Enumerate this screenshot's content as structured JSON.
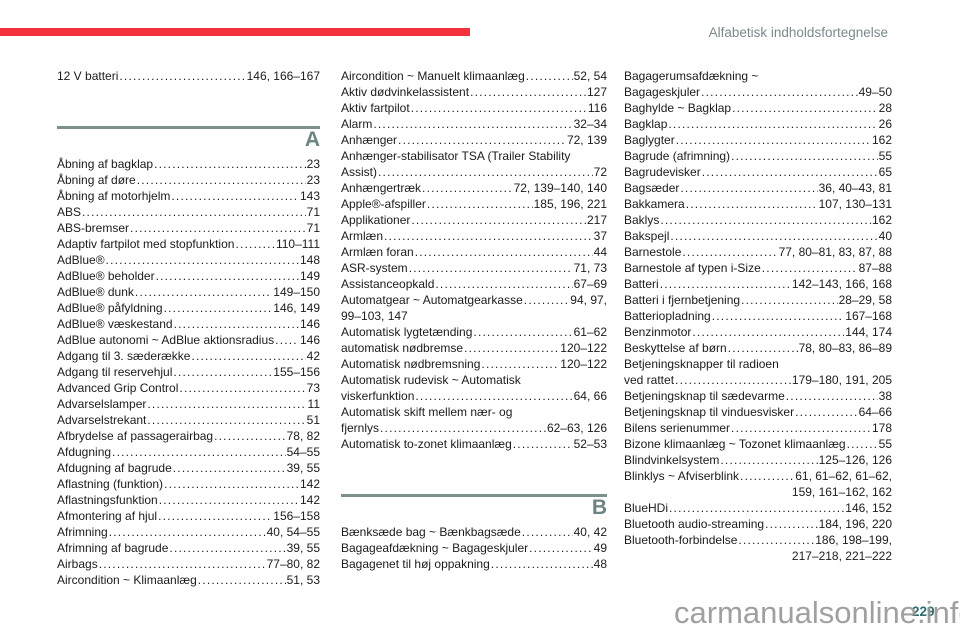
{
  "header": {
    "title": "Alfabetisk indholdsfortegnelse"
  },
  "page_number": "229",
  "watermark": "carmanualsonline.info",
  "colors": {
    "accent_red": "#f4323c",
    "divider_teal": "#7e908e",
    "letter_teal": "#6e8384",
    "header_gray": "#7b898d",
    "pagenum_teal": "#2f6b6e"
  },
  "columns": [
    {
      "sections": [
        {
          "letter": null,
          "rows": [
            {
              "label": "12 V batteri",
              "pages": "146, 166–167"
            }
          ]
        },
        {
          "letter": "A",
          "rows": [
            {
              "label": "Åbning af bagklap",
              "pages": "23"
            },
            {
              "label": "Åbning af døre",
              "pages": "23"
            },
            {
              "label": "Åbning af motorhjelm",
              "pages": "143"
            },
            {
              "label": "ABS",
              "pages": "71"
            },
            {
              "label": "ABS-bremser",
              "pages": "71"
            },
            {
              "label": "Adaptiv fartpilot med stopfunktion",
              "pages": "110–111"
            },
            {
              "label": "AdBlue®",
              "pages": "148"
            },
            {
              "label": "AdBlue® beholder",
              "pages": "149"
            },
            {
              "label": "AdBlue® dunk",
              "pages": "149–150"
            },
            {
              "label": "AdBlue® påfyldning",
              "pages": "146, 149"
            },
            {
              "label": "AdBlue® væskestand",
              "pages": "146"
            },
            {
              "label": "AdBlue autonomi ~ AdBlue aktionsradius",
              "pages": "146"
            },
            {
              "label": "Adgang til 3. sæderække",
              "pages": "42"
            },
            {
              "label": "Adgang til reservehjul",
              "pages": "155–156"
            },
            {
              "label": "Advanced Grip Control",
              "pages": "73"
            },
            {
              "label": "Advarselslamper",
              "pages": "11"
            },
            {
              "label": "Advarselstrekant",
              "pages": "51"
            },
            {
              "label": "Afbrydelse af passagerairbag",
              "pages": "78, 82"
            },
            {
              "label": "Afdugning",
              "pages": "54–55"
            },
            {
              "label": "Afdugning af bagrude",
              "pages": "39, 55"
            },
            {
              "label": "Aflastning (funktion)",
              "pages": "142"
            },
            {
              "label": "Aflastningsfunktion",
              "pages": "142"
            },
            {
              "label": "Afmontering af hjul",
              "pages": "156–158"
            },
            {
              "label": "Afrimning",
              "pages": "40, 54–55"
            },
            {
              "label": "Afrimning af bagrude",
              "pages": "39, 55"
            },
            {
              "label": "Airbags",
              "pages": "77–80, 82"
            },
            {
              "label": "Aircondition ~ Klimaanlæg",
              "pages": "51, 53"
            }
          ]
        }
      ]
    },
    {
      "sections": [
        {
          "letter": null,
          "rows": [
            {
              "label": "Aircondition ~ Manuelt klimaanlæg",
              "pages": "52, 54"
            },
            {
              "label": "Aktiv dødvinkelassistent",
              "pages": "127"
            },
            {
              "label": "Aktiv fartpilot",
              "pages": "116"
            },
            {
              "label": "Alarm",
              "pages": "32–34"
            },
            {
              "label": "Anhænger",
              "pages": "72, 139"
            },
            {
              "label": "Anhænger-stabilisator TSA (Trailer Stability",
              "dots": false,
              "pages": ""
            },
            {
              "label": "Assist)",
              "pages": "72"
            },
            {
              "label": "Anhængertræk",
              "pages": "72, 139–140, 140"
            },
            {
              "label": "Apple®-afspiller",
              "pages": "185, 196, 221"
            },
            {
              "label": "Applikationer",
              "pages": "217"
            },
            {
              "label": "Armlæn",
              "pages": "37"
            },
            {
              "label": "Armlæn foran",
              "pages": "44"
            },
            {
              "label": "ASR-system",
              "pages": "71, 73"
            },
            {
              "label": "Assistanceopkald",
              "pages": "67–69"
            },
            {
              "label": "Automatgear ~ Automatgearkasse",
              "pages": "94, 97,"
            },
            {
              "label": "99–103, 147",
              "dots": false,
              "pages": ""
            },
            {
              "label": "Automatisk lygtetænding",
              "pages": "61–62"
            },
            {
              "label": "automatisk nødbremse",
              "pages": "120–122"
            },
            {
              "label": "Automatisk nødbremsning",
              "pages": "120–122"
            },
            {
              "label": "Automatisk rudevisk ~ Automatisk",
              "dots": false,
              "pages": ""
            },
            {
              "label": "viskerfunktion",
              "pages": "64, 66"
            },
            {
              "label": "Automatisk skift mellem nær- og",
              "dots": false,
              "pages": ""
            },
            {
              "label": "fjernlys",
              "pages": "62–63, 126"
            },
            {
              "label": "Automatisk to-zonet klimaanlæg",
              "pages": "52–53"
            }
          ]
        },
        {
          "letter": "B",
          "rows": [
            {
              "label": "Bænksæde bag ~ Bænkbagsæde",
              "pages": "40, 42"
            },
            {
              "label": "Bagageafdækning ~ Bagageskjuler",
              "pages": "49"
            },
            {
              "label": "Bagagenet til høj oppakning",
              "pages": "48"
            }
          ]
        }
      ]
    },
    {
      "sections": [
        {
          "letter": null,
          "rows": [
            {
              "label": "Bagagerumsafdækning ~",
              "dots": false,
              "pages": ""
            },
            {
              "label": "Bagageskjuler",
              "pages": "49–50"
            },
            {
              "label": "Baghylde ~ Bagklap",
              "pages": "28"
            },
            {
              "label": "Bagklap",
              "pages": "26"
            },
            {
              "label": "Baglygter",
              "pages": "162"
            },
            {
              "label": "Bagrude (afrimning)",
              "pages": "55"
            },
            {
              "label": "Bagrudevisker",
              "pages": "65"
            },
            {
              "label": "Bagsæder",
              "pages": "36, 40–43, 81"
            },
            {
              "label": "Bakkamera",
              "pages": "107, 130–131"
            },
            {
              "label": "Baklys",
              "pages": "162"
            },
            {
              "label": "Bakspejl",
              "pages": "40"
            },
            {
              "label": "Barnestole",
              "pages": "77, 80–81, 83, 87, 88"
            },
            {
              "label": "Barnestole af typen i-Size",
              "pages": "87–88"
            },
            {
              "label": "Batteri",
              "pages": "142–143, 166, 168"
            },
            {
              "label": "Batteri i fjernbetjening",
              "pages": "28–29, 58"
            },
            {
              "label": "Batteriopladning",
              "pages": "167–168"
            },
            {
              "label": "Benzinmotor",
              "pages": "144, 174"
            },
            {
              "label": "Beskyttelse af børn",
              "pages": "78, 80–83, 86–89"
            },
            {
              "label": "Betjeningsknapper til radioen",
              "dots": false,
              "pages": ""
            },
            {
              "label": "ved rattet",
              "pages": "179–180, 191, 205"
            },
            {
              "label": "Betjeningsknap til sædevarme",
              "pages": "38"
            },
            {
              "label": "Betjeningsknap til vinduesvisker",
              "pages": "64–66"
            },
            {
              "label": "Bilens serienummer",
              "pages": "178"
            },
            {
              "label": "Bizone klimaanlæg ~ Tozonet klimaanlæg",
              "pages": "55"
            },
            {
              "label": "Blindvinkelsystem",
              "pages": "125–126, 126"
            },
            {
              "label": "Blinklys ~ Afviserblink",
              "pages": "61, 61–62, 61–62,"
            },
            {
              "label": "",
              "dots": false,
              "pages": "159, 161–162, 162",
              "align": "right"
            },
            {
              "label": "BlueHDi",
              "pages": "146, 152"
            },
            {
              "label": "Bluetooth audio-streaming",
              "pages": "184, 196, 220"
            },
            {
              "label": "Bluetooth-forbindelse",
              "pages": "186, 198–199,"
            },
            {
              "label": "",
              "dots": false,
              "pages": "217–218, 221–222",
              "align": "right"
            }
          ]
        }
      ]
    }
  ]
}
